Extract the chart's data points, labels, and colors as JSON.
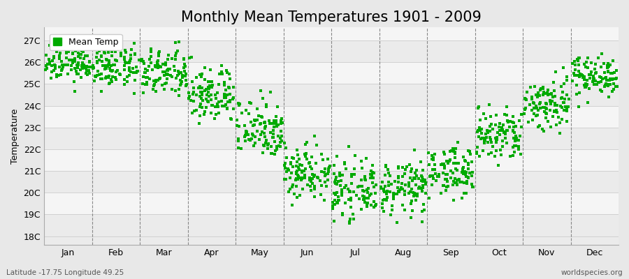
{
  "title": "Monthly Mean Temperatures 1901 - 2009",
  "ylabel": "Temperature",
  "xlabel_labels": [
    "Jan",
    "Feb",
    "Mar",
    "Apr",
    "May",
    "Jun",
    "Jul",
    "Aug",
    "Sep",
    "Oct",
    "Nov",
    "Dec"
  ],
  "ytick_labels": [
    "18C",
    "19C",
    "20C",
    "21C",
    "22C",
    "23C",
    "24C",
    "25C",
    "26C",
    "27C"
  ],
  "ytick_values": [
    18,
    19,
    20,
    21,
    22,
    23,
    24,
    25,
    26,
    27
  ],
  "ylim": [
    17.6,
    27.6
  ],
  "dot_color": "#00aa00",
  "legend_label": "Mean Temp",
  "footer_left": "Latitude -17.75 Longitude 49.25",
  "footer_right": "worldspecies.org",
  "title_fontsize": 15,
  "label_fontsize": 9,
  "tick_fontsize": 9,
  "monthly_means": [
    26.0,
    25.8,
    25.5,
    24.5,
    23.0,
    21.0,
    20.1,
    20.2,
    21.0,
    22.6,
    24.1,
    25.4
  ],
  "monthly_stds": [
    0.45,
    0.5,
    0.55,
    0.65,
    0.7,
    0.65,
    0.6,
    0.6,
    0.55,
    0.65,
    0.65,
    0.45
  ],
  "n_years": 109,
  "bg_even_color": "#ebebeb",
  "bg_odd_color": "#f5f5f5",
  "grid_line_color": "#cccccc",
  "dashed_line_color": "#888888"
}
